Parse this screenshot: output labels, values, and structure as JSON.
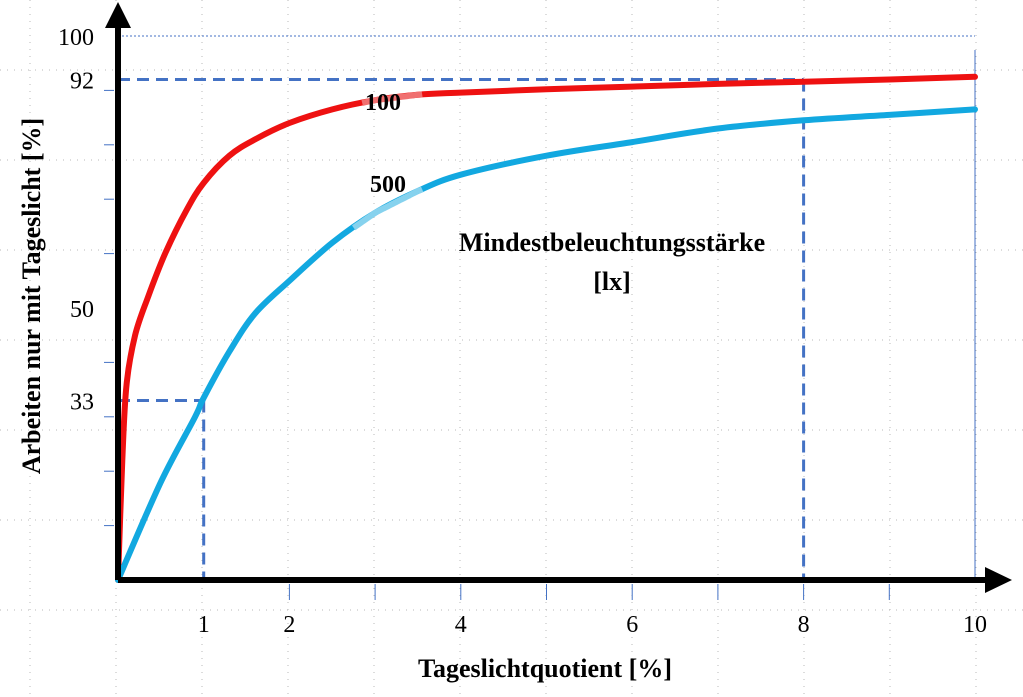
{
  "chart_data": {
    "type": "line",
    "xlabel": "Tageslichtquotient [%]",
    "ylabel": "Arbeiten nur mit Tageslicht [%]",
    "xlim": [
      0,
      10
    ],
    "ylim": [
      0,
      100
    ],
    "x_tick_labels": [
      {
        "value": 1,
        "label": "1"
      },
      {
        "value": 2,
        "label": "2"
      },
      {
        "value": 4,
        "label": "4"
      },
      {
        "value": 6,
        "label": "6"
      },
      {
        "value": 8,
        "label": "8"
      },
      {
        "value": 10,
        "label": "10"
      }
    ],
    "y_tick_labels": [
      {
        "value": 33,
        "label": "33"
      },
      {
        "value": 50,
        "label": "50"
      },
      {
        "value": 92,
        "label": "92"
      },
      {
        "value": 100,
        "label": "100"
      }
    ],
    "x_minor_ticks": [
      2,
      3,
      4,
      5,
      6,
      7,
      8,
      9
    ],
    "y_minor_ticks": [
      10,
      20,
      30,
      40,
      60,
      70,
      80,
      90
    ],
    "grid": "dotted",
    "series": [
      {
        "name": "100",
        "color": "#ee1111",
        "highlight_color": "#f07070",
        "x": [
          0,
          0.05,
          0.1,
          0.2,
          0.35,
          0.55,
          0.8,
          1.0,
          1.3,
          1.6,
          2.0,
          2.5,
          3.0,
          3.5,
          4.0,
          5.0,
          6.0,
          7.0,
          8.0,
          9.0,
          10.0
        ],
        "y": [
          0,
          22,
          36,
          45,
          52,
          60,
          68,
          73,
          78,
          81,
          84,
          86.5,
          88.2,
          89.2,
          89.6,
          90.2,
          90.7,
          91.2,
          91.6,
          92.0,
          92.5
        ]
      },
      {
        "name": "500",
        "color": "#12a8e0",
        "highlight_color": "#86d2ee",
        "x": [
          0,
          0.5,
          0.9,
          1.0,
          1.3,
          1.6,
          2.0,
          2.5,
          3.0,
          3.5,
          4.0,
          5.0,
          6.0,
          7.0,
          8.0,
          9.0,
          10.0
        ],
        "y": [
          0,
          18,
          30,
          33.5,
          42,
          49,
          55,
          62,
          67.5,
          71.5,
          74.5,
          78,
          80.5,
          83,
          84.5,
          85.5,
          86.5
        ]
      }
    ],
    "reference_lines": [
      {
        "x": 1,
        "y": 33
      },
      {
        "x": 8,
        "y": 92
      }
    ],
    "annotation": {
      "line1": "Mindestbeleuchtungsstärke",
      "line2": "[lx]"
    }
  }
}
